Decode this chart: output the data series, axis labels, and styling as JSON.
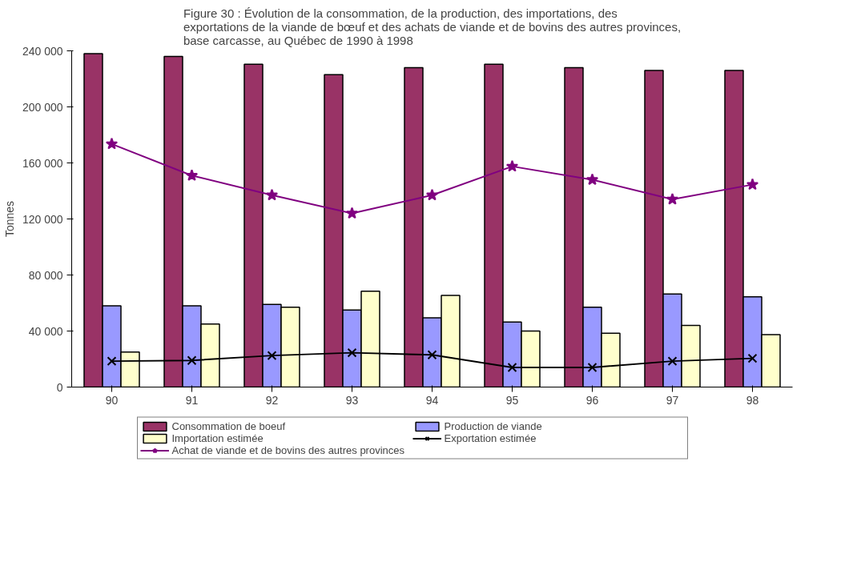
{
  "chart_data": {
    "type": "bar",
    "title": "Figure 30 : Évolution de la consommation, de la production, des importations, des exportations de la viande de bœuf et des achats de viande et de bovins des autres provinces, base carcasse, au Québec de 1990 à 1998",
    "ylabel": "Tonnes",
    "categories": [
      "90",
      "91",
      "92",
      "93",
      "94",
      "95",
      "96",
      "97",
      "98"
    ],
    "series": [
      {
        "name": "Consommation de boeuf",
        "color": "#993366",
        "values": [
          238000,
          236000,
          230500,
          223000,
          228000,
          230500,
          228000,
          226000,
          226000
        ]
      },
      {
        "name": "Production de viande",
        "color": "#9999ff",
        "values": [
          58000,
          58000,
          59000,
          55000,
          49500,
          46500,
          57000,
          66500,
          64500
        ]
      },
      {
        "name": "Importation estimée",
        "color": "#ffffcc",
        "values": [
          25000,
          45000,
          57000,
          68500,
          65500,
          40000,
          38500,
          44000,
          37500
        ]
      },
      {
        "name": "Exportation estimée",
        "type": "line",
        "color": "#000000",
        "marker": "cross",
        "values": [
          18500,
          19000,
          22500,
          24500,
          23000,
          14000,
          14000,
          18500,
          20500
        ]
      },
      {
        "name": "Achat de viande et de bovins des autres provinces",
        "type": "line",
        "color": "#800080",
        "marker": "star",
        "values": [
          173500,
          151000,
          137000,
          124000,
          137000,
          157500,
          148000,
          134000,
          144500
        ]
      }
    ],
    "ylim": [
      0,
      240000
    ],
    "yticks": [
      {
        "value": 0,
        "label": "0"
      },
      {
        "value": 40000,
        "label": "40 000"
      },
      {
        "value": 80000,
        "label": "80 000"
      },
      {
        "value": 120000,
        "label": "120 000"
      },
      {
        "value": 160000,
        "label": "160 000"
      },
      {
        "value": 200000,
        "label": "200 000"
      },
      {
        "value": 240000,
        "label": "240 000"
      }
    ],
    "grid": false,
    "legend": "bottom"
  }
}
